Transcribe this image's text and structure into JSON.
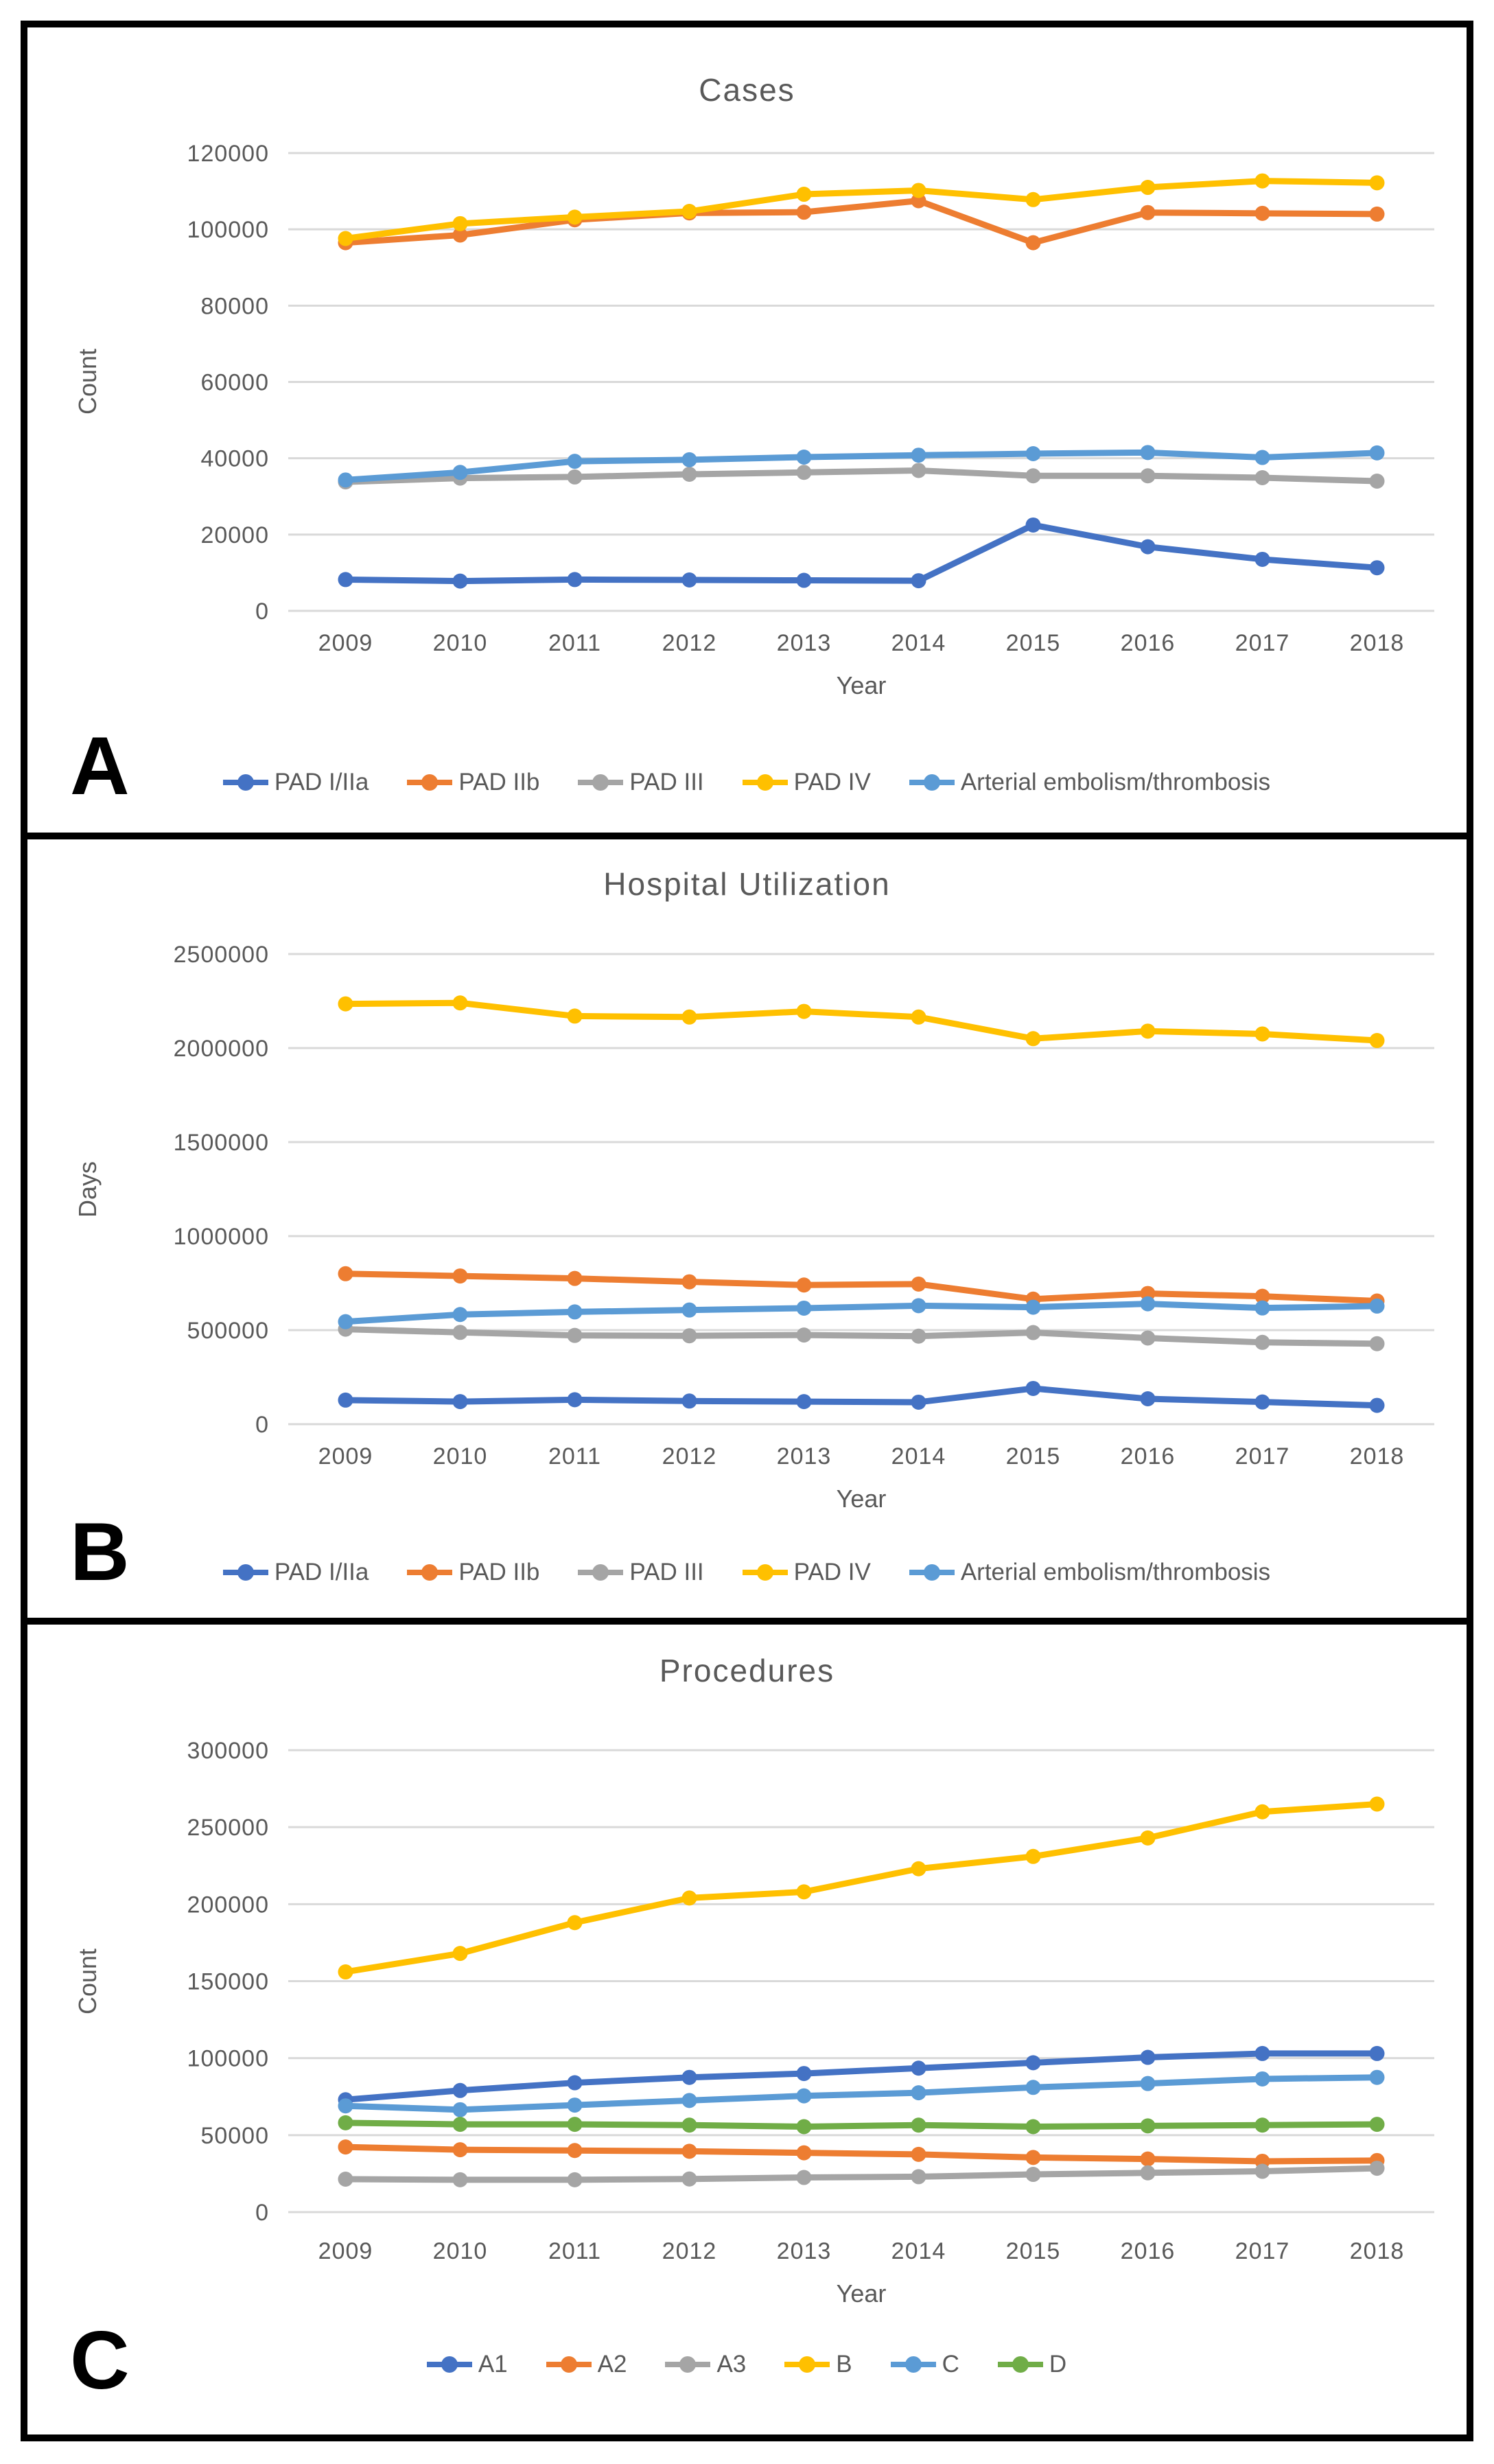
{
  "figure": {
    "background": "#ffffff",
    "border_color": "#000000",
    "text_color": "#595959",
    "gridline_color": "#d9d9d9"
  },
  "chart_data": [
    {
      "type": "line",
      "panel_label": "A",
      "title": "Cases",
      "xlabel": "Year",
      "ylabel": "Count",
      "grid": true,
      "legend_position": "bottom",
      "categories": [
        "2009",
        "2010",
        "2011",
        "2012",
        "2013",
        "2014",
        "2015",
        "2016",
        "2017",
        "2018"
      ],
      "ylim": [
        0,
        120000
      ],
      "y_ticks": [
        0,
        20000,
        40000,
        60000,
        80000,
        100000,
        120000
      ],
      "y_tick_labels": [
        "0",
        "20000",
        "40000",
        "60000",
        "80000",
        "100000",
        "120000"
      ],
      "series": [
        {
          "name": "PAD I/IIa",
          "color": "#4472C4",
          "values": [
            8200,
            7800,
            8200,
            8100,
            8000,
            7900,
            22500,
            16800,
            13500,
            11300
          ]
        },
        {
          "name": "PAD IIb",
          "color": "#ED7D31",
          "values": [
            96500,
            98500,
            102500,
            104300,
            104500,
            107500,
            96500,
            104400,
            104200,
            104000
          ]
        },
        {
          "name": "PAD III",
          "color": "#A5A5A5",
          "values": [
            33800,
            34800,
            35100,
            35800,
            36300,
            36800,
            35400,
            35400,
            34900,
            34000
          ]
        },
        {
          "name": "PAD IV",
          "color": "#FFC000",
          "values": [
            97600,
            101500,
            103200,
            104700,
            109200,
            110200,
            107800,
            111000,
            112700,
            112200
          ]
        },
        {
          "name": "Arterial embolism/thrombosis",
          "color": "#5B9BD5",
          "values": [
            34300,
            36300,
            39200,
            39600,
            40300,
            40800,
            41200,
            41500,
            40200,
            41400
          ]
        }
      ]
    },
    {
      "type": "line",
      "panel_label": "B",
      "title": "Hospital Utilization",
      "xlabel": "Year",
      "ylabel": "Days",
      "grid": true,
      "legend_position": "bottom",
      "categories": [
        "2009",
        "2010",
        "2011",
        "2012",
        "2013",
        "2014",
        "2015",
        "2016",
        "2017",
        "2018"
      ],
      "ylim": [
        0,
        2500000
      ],
      "y_ticks": [
        0,
        500000,
        1000000,
        1500000,
        2000000,
        2500000
      ],
      "y_tick_labels": [
        "0",
        "500000",
        "1000000",
        "1500000",
        "2000000",
        "2500000"
      ],
      "series": [
        {
          "name": "PAD I/IIa",
          "color": "#4472C4",
          "values": [
            128000,
            120000,
            130000,
            123000,
            120000,
            117000,
            190000,
            135000,
            118000,
            100000
          ]
        },
        {
          "name": "PAD IIb",
          "color": "#ED7D31",
          "values": [
            800000,
            788000,
            775000,
            757000,
            740000,
            745000,
            665000,
            695000,
            680000,
            655000
          ]
        },
        {
          "name": "PAD III",
          "color": "#A5A5A5",
          "values": [
            505000,
            488000,
            472000,
            470000,
            474000,
            468000,
            487000,
            458000,
            435000,
            428000
          ]
        },
        {
          "name": "PAD IV",
          "color": "#FFC000",
          "values": [
            2235000,
            2240000,
            2170000,
            2165000,
            2195000,
            2165000,
            2050000,
            2090000,
            2075000,
            2040000
          ]
        },
        {
          "name": "Arterial embolism/thrombosis",
          "color": "#5B9BD5",
          "values": [
            545000,
            583000,
            597000,
            607000,
            617000,
            630000,
            622000,
            640000,
            618000,
            628000
          ]
        }
      ]
    },
    {
      "type": "line",
      "panel_label": "C",
      "title": "Procedures",
      "xlabel": "Year",
      "ylabel": "Count",
      "grid": true,
      "legend_position": "bottom",
      "categories": [
        "2009",
        "2010",
        "2011",
        "2012",
        "2013",
        "2014",
        "2015",
        "2016",
        "2017",
        "2018"
      ],
      "ylim": [
        0,
        300000
      ],
      "y_ticks": [
        0,
        50000,
        100000,
        150000,
        200000,
        250000,
        300000
      ],
      "y_tick_labels": [
        "0",
        "50000",
        "100000",
        "150000",
        "200000",
        "250000",
        "300000"
      ],
      "series": [
        {
          "name": "A1",
          "color": "#4472C4",
          "values": [
            73000,
            79000,
            84000,
            87500,
            90000,
            93500,
            97000,
            100500,
            103000,
            103000
          ]
        },
        {
          "name": "A2",
          "color": "#ED7D31",
          "values": [
            42300,
            40500,
            40000,
            39500,
            38500,
            37500,
            35500,
            34500,
            33000,
            33500
          ]
        },
        {
          "name": "A3",
          "color": "#A5A5A5",
          "values": [
            21400,
            21000,
            21000,
            21500,
            22500,
            23000,
            24500,
            25500,
            26500,
            28500
          ]
        },
        {
          "name": "B",
          "color": "#FFC000",
          "values": [
            156000,
            168000,
            188000,
            204000,
            208000,
            223000,
            231000,
            243000,
            260000,
            265000
          ]
        },
        {
          "name": "C",
          "color": "#5B9BD5",
          "values": [
            69000,
            66500,
            69500,
            72500,
            75500,
            77500,
            81000,
            83500,
            86500,
            87500
          ]
        },
        {
          "name": "D",
          "color": "#70AD47",
          "values": [
            58000,
            57000,
            57000,
            56500,
            55500,
            56500,
            55500,
            56000,
            56500,
            57000
          ]
        }
      ]
    }
  ]
}
